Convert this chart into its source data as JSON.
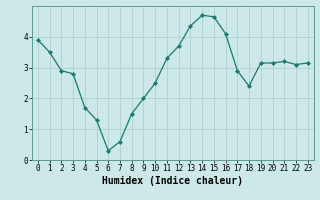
{
  "x": [
    0,
    1,
    2,
    3,
    4,
    5,
    6,
    7,
    8,
    9,
    10,
    11,
    12,
    13,
    14,
    15,
    16,
    17,
    18,
    19,
    20,
    21,
    22,
    23
  ],
  "y": [
    3.9,
    3.5,
    2.9,
    2.8,
    1.7,
    1.3,
    0.3,
    0.6,
    1.5,
    2.0,
    2.5,
    3.3,
    3.7,
    4.35,
    4.7,
    4.65,
    4.1,
    2.9,
    2.4,
    3.15,
    3.15,
    3.2,
    3.1,
    3.15
  ],
  "line_color": "#1a7a6e",
  "marker": "D",
  "marker_size": 2.0,
  "bg_color": "#cce8e8",
  "grid_color": "#aacccc",
  "xlabel": "Humidex (Indice chaleur)",
  "xlabel_fontsize": 7,
  "xlim": [
    -0.5,
    23.5
  ],
  "ylim": [
    0,
    5
  ],
  "yticks": [
    0,
    1,
    2,
    3,
    4
  ],
  "xticks": [
    0,
    1,
    2,
    3,
    4,
    5,
    6,
    7,
    8,
    9,
    10,
    11,
    12,
    13,
    14,
    15,
    16,
    17,
    18,
    19,
    20,
    21,
    22,
    23
  ],
  "tick_fontsize": 5.5,
  "spine_color": "#5a9a90",
  "line_width": 0.9
}
